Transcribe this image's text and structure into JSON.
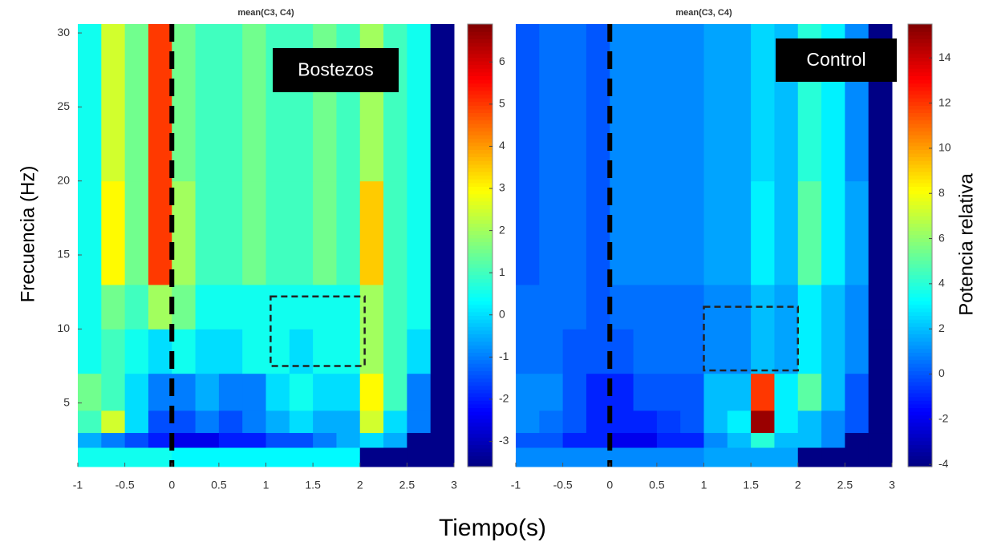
{
  "figure": {
    "xlabel": "Tiempo(s)"
  },
  "chart_data": [
    {
      "type": "heatmap",
      "title": "mean(C3, C4)",
      "label": "Bostezos",
      "ylabel": "Frecuencia (Hz)",
      "colormap": "jet",
      "xlim": [
        -1,
        3
      ],
      "ylim": [
        0.7,
        30.6
      ],
      "xticks": [
        -1,
        -0.5,
        0,
        0.5,
        1,
        1.5,
        2,
        2.5,
        3
      ],
      "yticks": [
        5,
        10,
        15,
        20,
        25,
        30
      ],
      "clim": [
        -3.6,
        6.9
      ],
      "cticks": [
        -3,
        -2,
        -1,
        0,
        1,
        2,
        3,
        4,
        5,
        6
      ],
      "vline": 0,
      "region": {
        "x": [
          1.05,
          2.05
        ],
        "y": [
          7.5,
          12.2
        ]
      },
      "x_edges": [
        -1,
        -0.75,
        -0.5,
        -0.25,
        0,
        0.25,
        0.5,
        0.75,
        1,
        1.25,
        1.5,
        1.75,
        2,
        2.25,
        2.5,
        2.75,
        3
      ],
      "y_edges": [
        0.7,
        2,
        3,
        4.5,
        7,
        10,
        13,
        20,
        30.6
      ],
      "z": [
        [
          0.5,
          0.5,
          0.5,
          0.5,
          0.3,
          0.3,
          0.3,
          0.3,
          0.3,
          0.3,
          0.3,
          0.3,
          -3.5,
          -3.5,
          -3.5,
          -3.5
        ],
        [
          -0.5,
          -1,
          -1.5,
          -2,
          -2.5,
          -2.5,
          -2,
          -2,
          -1.5,
          -1.5,
          -1,
          -0.5,
          0,
          -0.5,
          -3.5,
          -3.5
        ],
        [
          1,
          2.5,
          0,
          -1.5,
          -1.5,
          -1,
          -1.5,
          -1,
          -0.5,
          0,
          -0.5,
          -0.5,
          2.5,
          0,
          -1,
          -3.5
        ],
        [
          1.5,
          1,
          0,
          -1,
          -1,
          -0.5,
          -1,
          -1,
          0,
          0.5,
          0,
          0,
          3,
          1,
          -1,
          -3.5
        ],
        [
          0.5,
          1,
          0.5,
          0,
          0.5,
          0,
          0,
          0.5,
          0.5,
          0,
          0.5,
          0.5,
          2,
          1,
          0,
          -3.5
        ],
        [
          0.5,
          1.5,
          1,
          2,
          1.5,
          0.5,
          0.5,
          0.5,
          0.5,
          0.5,
          0.5,
          0.5,
          2,
          1,
          0.5,
          -3.5
        ],
        [
          0.5,
          3,
          1.5,
          5,
          2,
          1,
          1,
          1.5,
          1,
          1,
          1.5,
          1,
          3.5,
          1,
          0.5,
          -3.5
        ],
        [
          0.5,
          2.5,
          1.5,
          5,
          1.5,
          1,
          1,
          1.5,
          1,
          1,
          1.5,
          1,
          2,
          1,
          0.5,
          -3.5
        ]
      ]
    },
    {
      "type": "heatmap",
      "title": "mean(C3, C4)",
      "label": "Control",
      "colorbar_label": "Potencia relativa",
      "colormap": "jet",
      "xlim": [
        -1,
        3
      ],
      "ylim": [
        0.7,
        30.6
      ],
      "xticks": [
        -1,
        -0.5,
        0,
        0.5,
        1,
        1.5,
        2,
        2.5,
        3
      ],
      "clim": [
        -4.1,
        15.5
      ],
      "cticks": [
        -4,
        -2,
        0,
        2,
        4,
        6,
        8,
        10,
        12,
        14
      ],
      "vline": 0,
      "region": {
        "x": [
          1,
          2
        ],
        "y": [
          7.2,
          11.5
        ]
      },
      "x_edges": [
        -1,
        -0.75,
        -0.5,
        -0.25,
        0,
        0.25,
        0.5,
        0.75,
        1,
        1.25,
        1.5,
        1.75,
        2,
        2.25,
        2.5,
        2.75,
        3
      ],
      "y_edges": [
        0.7,
        2,
        3,
        4.5,
        7,
        10,
        13,
        20,
        30.6
      ],
      "z": [
        [
          1,
          1,
          1,
          1,
          1,
          1,
          1,
          1,
          1.5,
          1.5,
          1.5,
          1.5,
          -4,
          -4,
          -4,
          -4
        ],
        [
          0,
          0,
          -1,
          -1,
          -2,
          -2,
          -1,
          -1,
          1,
          2,
          4,
          2,
          2,
          1,
          -4,
          -4
        ],
        [
          1,
          0.5,
          0,
          -1,
          -1,
          -1,
          -0.5,
          0,
          2,
          3,
          15,
          3,
          2,
          1,
          0,
          -4
        ],
        [
          1,
          1,
          0,
          -1,
          -1,
          0,
          0,
          0,
          2,
          2,
          12,
          3,
          5,
          2,
          0,
          -4
        ],
        [
          0.5,
          0.5,
          0,
          0,
          0,
          0.5,
          0.5,
          0.5,
          1,
          1,
          2,
          1.5,
          3,
          2,
          1,
          -4
        ],
        [
          0.5,
          0.5,
          0.5,
          0,
          0.5,
          0.5,
          0.5,
          0.5,
          1,
          1,
          2,
          1.5,
          3,
          2,
          1,
          -4
        ],
        [
          0,
          0.5,
          0.5,
          0,
          1,
          1,
          1,
          1,
          1.5,
          1.5,
          3,
          2,
          5,
          3,
          1.5,
          -4
        ],
        [
          0,
          0.5,
          0.5,
          0,
          1,
          1,
          1,
          1,
          1.5,
          1.5,
          2.5,
          2,
          4,
          3,
          1,
          -4
        ]
      ]
    }
  ]
}
